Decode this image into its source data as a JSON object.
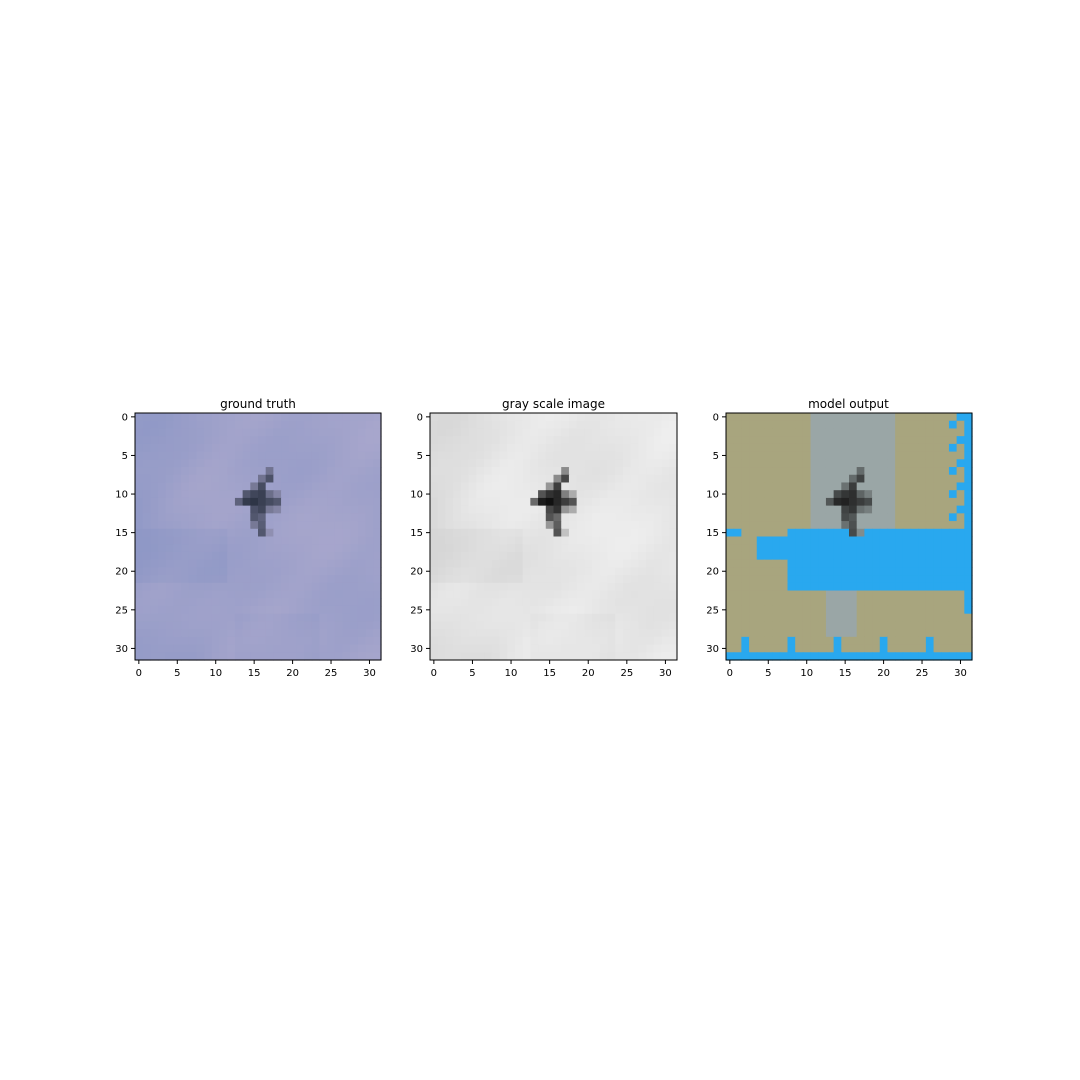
{
  "chart_data": [
    {
      "type": "heatmap",
      "title": "ground truth",
      "grid_size": [
        32,
        32
      ],
      "xticks": [
        "0",
        "5",
        "10",
        "15",
        "20",
        "25",
        "30"
      ],
      "yticks": [
        "0",
        "5",
        "10",
        "15",
        "20",
        "25",
        "30"
      ],
      "xlim": [
        -0.5,
        31.5
      ],
      "ylim": [
        31.5,
        -0.5
      ],
      "colors": {
        "sky_light": "#a7a6cc",
        "sky_dark": "#8f98c6",
        "object": "#2e3546"
      }
    },
    {
      "type": "heatmap",
      "title": "gray scale image",
      "grid_size": [
        32,
        32
      ],
      "xticks": [
        "0",
        "5",
        "10",
        "15",
        "20",
        "25",
        "30"
      ],
      "yticks": [
        "0",
        "5",
        "10",
        "15",
        "20",
        "25",
        "30"
      ],
      "xlim": [
        -0.5,
        31.5
      ],
      "ylim": [
        31.5,
        -0.5
      ],
      "colors": {
        "sky_light": "#eeeeee",
        "sky_dark": "#d6d6d6",
        "object": "#111111"
      }
    },
    {
      "type": "heatmap",
      "title": "model output",
      "grid_size": [
        32,
        32
      ],
      "xticks": [
        "0",
        "5",
        "10",
        "15",
        "20",
        "25",
        "30"
      ],
      "yticks": [
        "0",
        "5",
        "10",
        "15",
        "20",
        "25",
        "30"
      ],
      "xlim": [
        -0.5,
        31.5
      ],
      "ylim": [
        31.5,
        -0.5
      ],
      "colors": {
        "olive": "#a8a57e",
        "gray_blue": "#9aa6a6",
        "bright_blue": "#29a8ef",
        "object": "#222222"
      }
    }
  ]
}
